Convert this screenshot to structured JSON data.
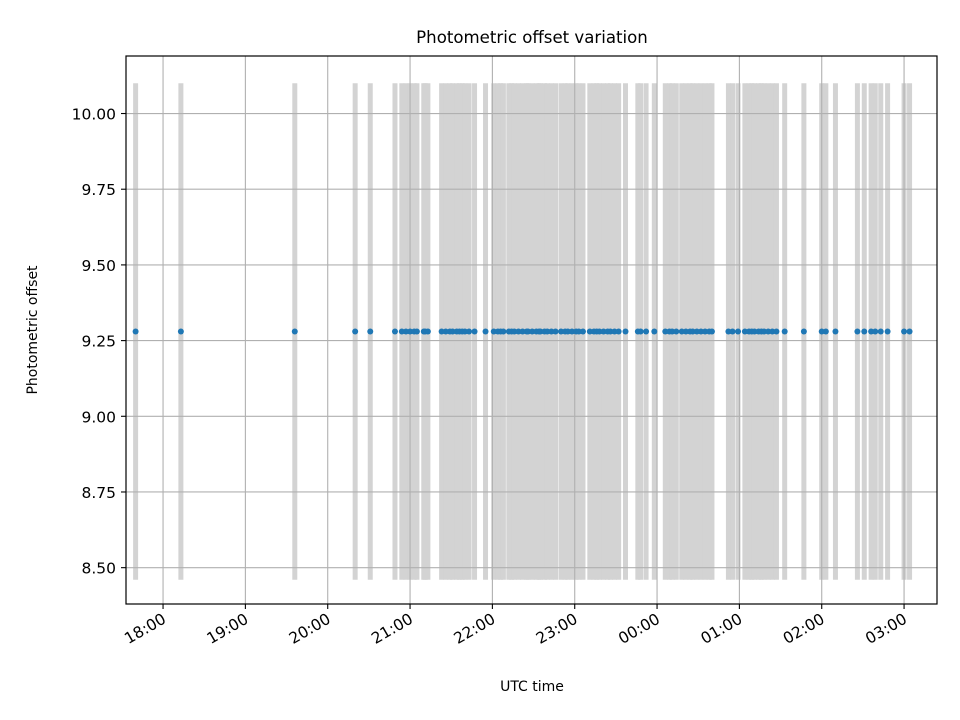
{
  "chart_data": {
    "type": "scatter",
    "title": "Photometric offset variation",
    "xlabel": "UTC time",
    "ylabel": "Photometric offset",
    "x_axis_kind": "time",
    "x_start": "17:30",
    "xlim_hours": [
      17.55,
      27.4
    ],
    "ylim": [
      8.38,
      10.19
    ],
    "x_ticks": [
      "18:00",
      "19:00",
      "20:00",
      "21:00",
      "22:00",
      "23:00",
      "00:00",
      "01:00",
      "02:00",
      "03:00"
    ],
    "y_ticks": [
      "8.50",
      "8.75",
      "9.00",
      "9.25",
      "9.50",
      "9.75",
      "10.00"
    ],
    "grid": true,
    "errorbar_color": "#d3d3d3",
    "point_color": "#1f77b4",
    "series": [
      {
        "y_value": 9.28,
        "yerr_low": 8.46,
        "yerr_high": 10.1,
        "x": [
          "17:40",
          "18:13",
          "19:36",
          "20:20",
          "20:31",
          "20:49",
          "20:54",
          "20:57",
          "21:00",
          "21:03",
          "21:05",
          "21:10",
          "21:11",
          "21:13",
          "21:23",
          "21:26",
          "21:29",
          "21:31",
          "21:34",
          "21:36",
          "21:38",
          "21:40",
          "21:43",
          "21:47",
          "21:55",
          "22:01",
          "22:04",
          "22:06",
          "22:08",
          "22:12",
          "22:14",
          "22:16",
          "22:19",
          "22:22",
          "22:25",
          "22:26",
          "22:29",
          "22:32",
          "22:34",
          "22:35",
          "22:38",
          "22:40",
          "22:43",
          "22:46",
          "22:50",
          "22:53",
          "22:55",
          "22:58",
          "23:01",
          "23:03",
          "23:06",
          "23:11",
          "23:14",
          "23:16",
          "23:18",
          "23:21",
          "23:24",
          "23:26",
          "23:29",
          "23:32",
          "23:37",
          "23:46",
          "23:48",
          "23:52",
          "23:58",
          "00:06",
          "00:09",
          "00:11",
          "00:14",
          "00:18",
          "00:21",
          "00:24",
          "00:26",
          "00:29",
          "00:32",
          "00:35",
          "00:38",
          "00:40",
          "00:52",
          "00:55",
          "00:59",
          "01:04",
          "01:07",
          "01:09",
          "01:11",
          "01:14",
          "01:16",
          "01:18",
          "01:21",
          "01:24",
          "01:27",
          "01:33",
          "01:47",
          "02:00",
          "02:03",
          "02:10",
          "02:26",
          "02:31",
          "02:36",
          "02:39",
          "02:43",
          "02:48",
          "03:00",
          "03:04"
        ]
      }
    ]
  }
}
